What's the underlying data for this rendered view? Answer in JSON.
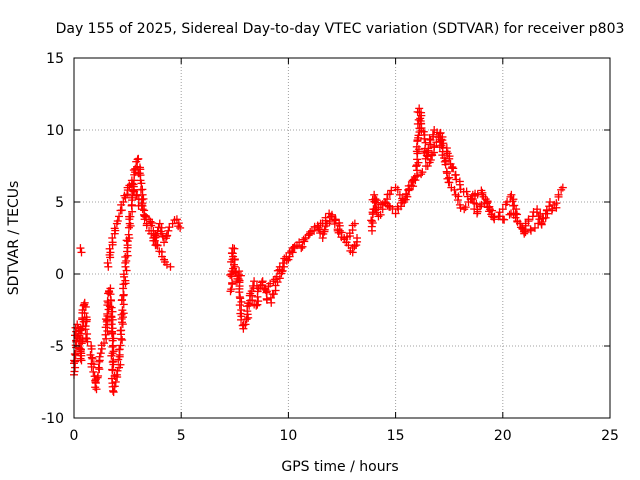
{
  "chart_data": {
    "type": "scatter",
    "title": "Day 155 of 2025, Sidereal Day-to-day VTEC variation (SDTVAR) for receiver p803",
    "xlabel": "GPS time / hours",
    "ylabel": "SDTVAR / TECUs",
    "xlim": [
      0,
      25
    ],
    "ylim": [
      -10,
      15
    ],
    "xticks": [
      "0",
      "5",
      "10",
      "15",
      "20",
      "25"
    ],
    "yticks": [
      "-10",
      "-5",
      "0",
      "5",
      "10",
      "15"
    ],
    "grid": true,
    "marker": "+",
    "color": "#ff0000",
    "series": [
      {
        "name": "SDTVAR",
        "x": [
          0.0,
          0.05,
          0.1,
          0.15,
          0.2,
          0.25,
          0.3,
          0.35,
          0.4,
          0.45,
          0.5,
          0.6,
          0.8,
          0.9,
          1.0,
          1.05,
          1.1,
          1.15,
          1.2,
          1.25,
          1.3,
          1.4,
          1.5,
          1.6,
          1.7,
          1.75,
          1.8,
          1.85,
          1.9,
          2.0,
          2.1,
          2.2,
          2.3,
          2.4,
          2.5,
          2.6,
          2.7,
          2.8,
          2.9,
          3.0,
          3.1,
          3.2,
          3.3,
          3.4,
          3.5,
          3.6,
          3.7,
          3.8,
          3.9,
          4.0,
          4.1,
          4.2,
          4.4,
          4.6,
          4.8,
          4.95,
          0.3,
          0.35,
          1.6,
          1.7,
          1.8,
          1.9,
          2.0,
          2.1,
          2.2,
          2.3,
          2.5,
          2.7,
          2.9,
          3.2,
          3.5,
          3.7,
          3.9,
          4.2,
          4.5,
          7.3,
          7.4,
          7.5,
          7.6,
          7.7,
          7.8,
          7.9,
          8.0,
          8.1,
          8.2,
          8.4,
          8.6,
          8.8,
          9.0,
          9.2,
          9.4,
          9.6,
          9.8,
          10.0,
          10.2,
          10.4,
          10.6,
          10.8,
          11.0,
          11.2,
          11.4,
          11.6,
          11.8,
          12.0,
          12.2,
          12.4,
          12.6,
          12.8,
          13.0,
          13.2,
          8.3,
          8.5,
          8.7,
          9.0,
          9.3,
          9.6,
          9.9,
          10.2,
          10.5,
          10.8,
          11.1,
          11.5,
          11.9,
          12.3,
          12.7,
          13.1,
          13.9,
          14.0,
          14.2,
          14.4,
          14.6,
          14.8,
          15.0,
          15.2,
          15.4,
          15.6,
          15.8,
          16.0,
          16.1,
          16.2,
          16.4,
          16.6,
          16.8,
          17.0,
          17.2,
          17.4,
          17.6,
          17.8,
          18.0,
          18.2,
          18.4,
          18.6,
          18.8,
          19.0,
          19.2,
          19.4,
          19.6,
          19.8,
          20.0,
          20.2,
          20.4,
          20.6,
          20.8,
          21.0,
          21.2,
          21.4,
          21.6,
          21.8,
          22.0,
          22.2,
          22.4,
          22.6,
          22.8,
          14.0,
          14.5,
          15.0,
          15.5,
          16.0,
          16.5,
          16.8,
          17.1,
          17.5,
          18.0,
          18.5,
          19.0,
          19.5,
          20.0,
          20.5,
          21.0,
          21.5,
          22.0,
          22.5
        ],
        "y": [
          -7.0,
          -6.5,
          -4.0,
          -3.5,
          -3.8,
          -4.5,
          -5.2,
          -6.0,
          -2.5,
          -2.2,
          -2.0,
          -4.5,
          -5.0,
          -6.8,
          -7.5,
          -8.0,
          -7.2,
          -6.5,
          -6.0,
          -5.5,
          -5.2,
          -4.8,
          -4.5,
          -2.0,
          -1.0,
          -3.0,
          -5.5,
          -8.2,
          -7.8,
          -7.0,
          -6.5,
          -4.5,
          -1.5,
          0.5,
          2.0,
          3.5,
          4.8,
          6.5,
          7.8,
          8.0,
          6.5,
          5.5,
          4.0,
          3.5,
          3.0,
          2.8,
          2.5,
          2.0,
          3.0,
          3.5,
          2.8,
          2.2,
          3.0,
          3.5,
          3.8,
          3.2,
          1.8,
          1.5,
          0.5,
          1.5,
          2.2,
          2.8,
          3.5,
          4.0,
          4.8,
          5.0,
          6.0,
          6.5,
          5.5,
          4.5,
          3.8,
          3.0,
          2.0,
          1.0,
          0.5,
          -1.2,
          1.8,
          0.5,
          -0.5,
          0.2,
          -2.5,
          -3.8,
          -3.5,
          -2.8,
          -1.5,
          -0.5,
          -1.0,
          -0.5,
          -1.8,
          -2.0,
          -0.8,
          -0.3,
          0.5,
          1.0,
          1.5,
          2.0,
          1.8,
          2.5,
          2.8,
          3.0,
          3.2,
          2.5,
          3.5,
          4.0,
          3.8,
          3.0,
          2.5,
          2.0,
          1.5,
          2.5,
          -1.5,
          -2.2,
          -0.8,
          -1.2,
          -0.5,
          0.5,
          1.2,
          1.8,
          2.2,
          2.5,
          3.0,
          3.5,
          4.2,
          3.0,
          2.2,
          3.5,
          3.0,
          5.5,
          4.0,
          4.5,
          5.2,
          5.8,
          6.0,
          5.5,
          5.0,
          5.8,
          6.5,
          7.2,
          11.5,
          11.0,
          8.0,
          9.0,
          10.0,
          9.5,
          8.5,
          7.0,
          6.0,
          5.5,
          4.8,
          4.5,
          5.0,
          5.5,
          4.2,
          4.8,
          5.2,
          4.5,
          3.8,
          4.0,
          4.5,
          5.0,
          5.5,
          4.2,
          3.5,
          3.0,
          3.8,
          4.0,
          4.5,
          3.5,
          4.2,
          5.0,
          4.8,
          5.5,
          6.0,
          4.5,
          5.0,
          4.2,
          5.5,
          6.8,
          7.5,
          8.8,
          9.8,
          8.0,
          6.2,
          5.2,
          5.8,
          4.0,
          3.8,
          4.2,
          2.8,
          3.2,
          3.9,
          4.6
        ]
      }
    ]
  }
}
